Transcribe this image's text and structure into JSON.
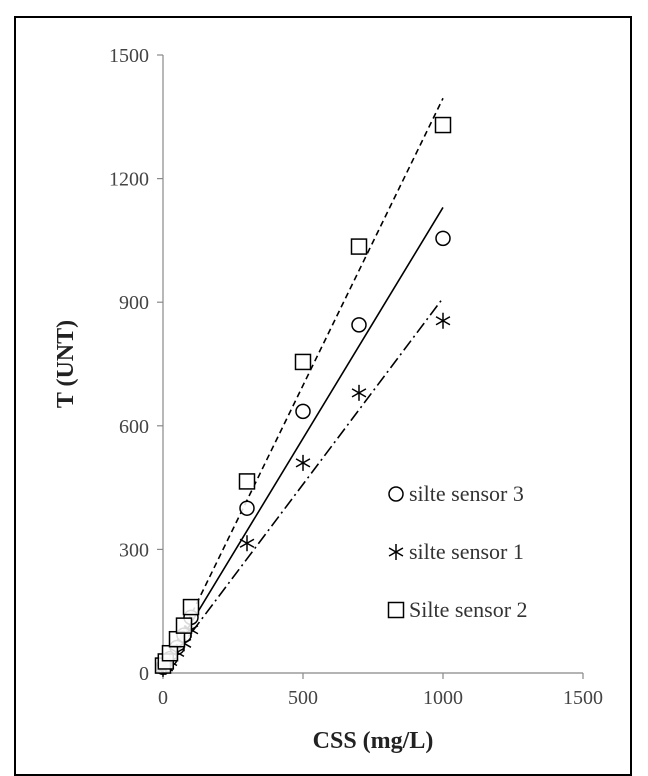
{
  "chart_data": {
    "type": "scatter",
    "xlabel": "CSS (mg/L)",
    "ylabel": "T (UNT)",
    "xlim": [
      0,
      1500
    ],
    "ylim": [
      0,
      1500
    ],
    "xticks": [
      0,
      500,
      1000,
      1500
    ],
    "yticks": [
      0,
      300,
      600,
      900,
      1200,
      1500
    ],
    "grid": false,
    "legend_position": "bottom-right",
    "series": [
      {
        "name": "silte sensor 3",
        "marker": "circle",
        "line_style": "solid",
        "x": [
          0,
          10,
          25,
          50,
          75,
          100,
          300,
          500,
          700,
          1000
        ],
        "y": [
          14,
          18,
          35,
          62,
          92,
          135,
          400,
          635,
          845,
          1055
        ],
        "fit_line": {
          "x": [
            10,
            1000
          ],
          "y": [
            20,
            1130
          ]
        }
      },
      {
        "name": "silte sensor 1",
        "marker": "asterisk",
        "line_style": "dash-dot",
        "x": [
          0,
          10,
          25,
          50,
          75,
          100,
          300,
          500,
          700,
          1000
        ],
        "y": [
          10,
          15,
          28,
          50,
          72,
          105,
          315,
          510,
          680,
          855
        ],
        "fit_line": {
          "x": [
            10,
            1000
          ],
          "y": [
            15,
            910
          ]
        }
      },
      {
        "name": "Silte sensor 2",
        "marker": "square",
        "line_style": "dashed",
        "x": [
          0,
          10,
          25,
          50,
          75,
          100,
          300,
          500,
          700,
          1000
        ],
        "y": [
          18,
          28,
          48,
          82,
          115,
          160,
          465,
          755,
          1035,
          1330
        ],
        "fit_line": {
          "x": [
            10,
            1000
          ],
          "y": [
            15,
            1395
          ]
        }
      }
    ]
  }
}
